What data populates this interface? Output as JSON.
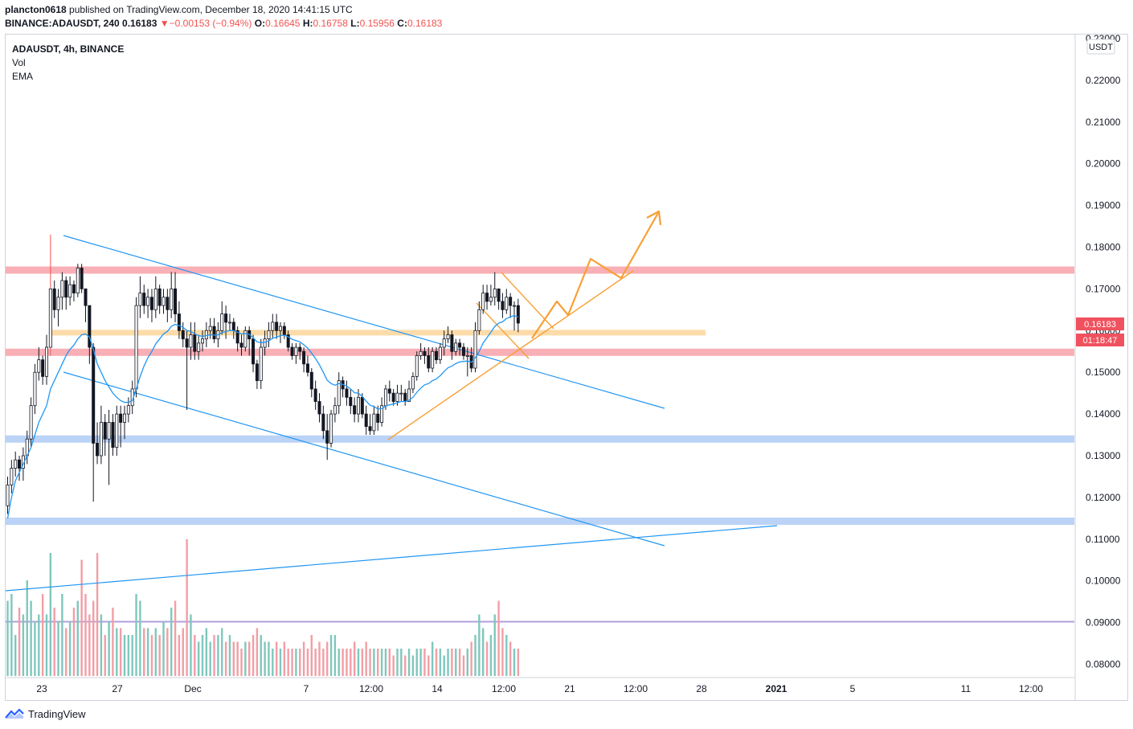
{
  "header": {
    "user": "plancton0618",
    "published_text": "published on TradingView.com, December 18, 2020 14:41:15 UTC",
    "symbol": "BINANCE:ADAUSDT, 240",
    "last": "0.16183",
    "change_arrow": "▼",
    "change": "−0.00153 (−0.94%)",
    "o_label": "O:",
    "o_value": "0.16645",
    "h_label": "H:",
    "h_value": "0.16758",
    "l_label": "L:",
    "l_value": "0.15956",
    "c_label": "C:",
    "c_value": "0.16183"
  },
  "legend": {
    "title": "ADAUSDT, 4h, BINANCE",
    "vol": "Vol",
    "ema": "EMA"
  },
  "price_axis": {
    "currency": "USDT",
    "current_price": "0.16183",
    "countdown": "01:18:47",
    "ticks": [
      "0.23000",
      "0.22000",
      "0.21000",
      "0.20000",
      "0.19000",
      "0.18000",
      "0.17000",
      "0.16000",
      "0.15000",
      "0.14000",
      "0.13000",
      "0.12000",
      "0.11000",
      "0.10000",
      "0.09000",
      "0.08000"
    ]
  },
  "time_axis": {
    "labels": [
      {
        "text": "23",
        "bold": false
      },
      {
        "text": "27",
        "bold": false
      },
      {
        "text": "Dec",
        "bold": false
      },
      {
        "text": "7",
        "bold": false
      },
      {
        "text": "12:00",
        "bold": false
      },
      {
        "text": "14",
        "bold": false
      },
      {
        "text": "12:00",
        "bold": false
      },
      {
        "text": "21",
        "bold": false
      },
      {
        "text": "12:00",
        "bold": false
      },
      {
        "text": "28",
        "bold": false
      },
      {
        "text": "2021",
        "bold": true
      },
      {
        "text": "5",
        "bold": false
      },
      {
        "text": "11",
        "bold": false
      },
      {
        "text": "12:00",
        "bold": false
      }
    ]
  },
  "footer": {
    "brand": "TradingView"
  },
  "colors": {
    "up": "#131722",
    "down": "#131722",
    "ema": "#2196f3",
    "trendline": "#2196f3",
    "resistance_zone": "#f7a1a8",
    "support_zone": "#aecbf5",
    "orange": "#f7a035",
    "orange_zone": "#fddcaa",
    "vol_up": "#7fc7bd",
    "vol_down": "#f29ea5",
    "price_label": "#f0515e"
  },
  "chart_data": {
    "type": "candlestick",
    "symbol": "ADAUSDT",
    "interval": "4h",
    "exchange": "BINANCE",
    "y_range": [
      0.076,
      0.233
    ],
    "ohlc": {
      "o": [
        0.118,
        0.123,
        0.127,
        0.129,
        0.127,
        0.13,
        0.134,
        0.142,
        0.15,
        0.153,
        0.149,
        0.156,
        0.17,
        0.165,
        0.168,
        0.172,
        0.168,
        0.171,
        0.169,
        0.175,
        0.17,
        0.166,
        0.156,
        0.133,
        0.13,
        0.138,
        0.134,
        0.138,
        0.132,
        0.14,
        0.138,
        0.14,
        0.142,
        0.146,
        0.166,
        0.169,
        0.166,
        0.168,
        0.165,
        0.17,
        0.166,
        0.168,
        0.165,
        0.17,
        0.164,
        0.16,
        0.158,
        0.156,
        0.159,
        0.155,
        0.157,
        0.158,
        0.16,
        0.161,
        0.158,
        0.16,
        0.164,
        0.162,
        0.162,
        0.16,
        0.157,
        0.156,
        0.16,
        0.158,
        0.152,
        0.148,
        0.156,
        0.158,
        0.16,
        0.162,
        0.16,
        0.161,
        0.159,
        0.156,
        0.154,
        0.156,
        0.155,
        0.152,
        0.15,
        0.146,
        0.143,
        0.14,
        0.136,
        0.133,
        0.14,
        0.142,
        0.148,
        0.146,
        0.144,
        0.142,
        0.14,
        0.144,
        0.14,
        0.137,
        0.136,
        0.14,
        0.138,
        0.142,
        0.146,
        0.145,
        0.143,
        0.145,
        0.145,
        0.143,
        0.146,
        0.149,
        0.154,
        0.155,
        0.154,
        0.151,
        0.155,
        0.153,
        0.156,
        0.158,
        0.159,
        0.155,
        0.157,
        0.156,
        0.154,
        0.154,
        0.151,
        0.16,
        0.165,
        0.169,
        0.167,
        0.168,
        0.17,
        0.167,
        0.165,
        0.168,
        0.166,
        0.166
      ],
      "c": [
        0.123,
        0.127,
        0.129,
        0.127,
        0.13,
        0.134,
        0.142,
        0.15,
        0.153,
        0.149,
        0.156,
        0.17,
        0.165,
        0.168,
        0.172,
        0.168,
        0.171,
        0.169,
        0.175,
        0.17,
        0.166,
        0.156,
        0.133,
        0.13,
        0.138,
        0.134,
        0.138,
        0.132,
        0.14,
        0.138,
        0.14,
        0.142,
        0.146,
        0.166,
        0.169,
        0.166,
        0.168,
        0.165,
        0.17,
        0.166,
        0.168,
        0.165,
        0.17,
        0.164,
        0.16,
        0.158,
        0.156,
        0.159,
        0.155,
        0.157,
        0.158,
        0.16,
        0.161,
        0.158,
        0.16,
        0.164,
        0.162,
        0.162,
        0.16,
        0.157,
        0.156,
        0.16,
        0.158,
        0.152,
        0.148,
        0.156,
        0.158,
        0.16,
        0.162,
        0.16,
        0.161,
        0.159,
        0.156,
        0.154,
        0.156,
        0.155,
        0.152,
        0.15,
        0.146,
        0.143,
        0.14,
        0.136,
        0.133,
        0.14,
        0.142,
        0.148,
        0.146,
        0.144,
        0.142,
        0.14,
        0.144,
        0.14,
        0.137,
        0.136,
        0.14,
        0.138,
        0.142,
        0.146,
        0.145,
        0.143,
        0.145,
        0.145,
        0.143,
        0.146,
        0.149,
        0.154,
        0.155,
        0.154,
        0.151,
        0.155,
        0.153,
        0.156,
        0.158,
        0.159,
        0.155,
        0.157,
        0.156,
        0.154,
        0.154,
        0.151,
        0.16,
        0.165,
        0.169,
        0.167,
        0.168,
        0.17,
        0.167,
        0.165,
        0.168,
        0.166,
        0.166,
        0.1618
      ],
      "h": [
        0.125,
        0.129,
        0.131,
        0.13,
        0.132,
        0.136,
        0.144,
        0.152,
        0.156,
        0.154,
        0.159,
        0.183,
        0.172,
        0.17,
        0.174,
        0.173,
        0.173,
        0.172,
        0.176,
        0.176,
        0.169,
        0.16,
        0.157,
        0.138,
        0.142,
        0.14,
        0.141,
        0.14,
        0.142,
        0.142,
        0.142,
        0.144,
        0.148,
        0.168,
        0.173,
        0.171,
        0.17,
        0.17,
        0.173,
        0.171,
        0.17,
        0.17,
        0.174,
        0.174,
        0.167,
        0.162,
        0.16,
        0.162,
        0.162,
        0.159,
        0.16,
        0.162,
        0.163,
        0.163,
        0.162,
        0.167,
        0.166,
        0.164,
        0.163,
        0.161,
        0.159,
        0.161,
        0.161,
        0.159,
        0.153,
        0.158,
        0.16,
        0.162,
        0.164,
        0.164,
        0.162,
        0.162,
        0.16,
        0.157,
        0.157,
        0.157,
        0.156,
        0.154,
        0.151,
        0.148,
        0.145,
        0.142,
        0.14,
        0.141,
        0.144,
        0.15,
        0.149,
        0.148,
        0.146,
        0.144,
        0.146,
        0.145,
        0.142,
        0.14,
        0.142,
        0.142,
        0.144,
        0.147,
        0.148,
        0.146,
        0.147,
        0.147,
        0.146,
        0.148,
        0.15,
        0.155,
        0.157,
        0.156,
        0.156,
        0.156,
        0.156,
        0.157,
        0.16,
        0.161,
        0.16,
        0.158,
        0.158,
        0.157,
        0.156,
        0.156,
        0.162,
        0.167,
        0.171,
        0.171,
        0.171,
        0.174,
        0.17,
        0.169,
        0.17,
        0.169,
        0.167,
        0.1676
      ],
      "l": [
        0.116,
        0.121,
        0.125,
        0.124,
        0.124,
        0.128,
        0.132,
        0.14,
        0.148,
        0.147,
        0.147,
        0.154,
        0.163,
        0.161,
        0.165,
        0.165,
        0.166,
        0.167,
        0.168,
        0.169,
        0.162,
        0.152,
        0.119,
        0.128,
        0.128,
        0.13,
        0.123,
        0.13,
        0.13,
        0.132,
        0.134,
        0.138,
        0.14,
        0.144,
        0.163,
        0.164,
        0.163,
        0.162,
        0.163,
        0.164,
        0.164,
        0.162,
        0.163,
        0.162,
        0.158,
        0.156,
        0.141,
        0.153,
        0.153,
        0.153,
        0.155,
        0.156,
        0.158,
        0.157,
        0.156,
        0.159,
        0.158,
        0.16,
        0.158,
        0.155,
        0.154,
        0.155,
        0.154,
        0.15,
        0.146,
        0.146,
        0.154,
        0.156,
        0.158,
        0.158,
        0.157,
        0.158,
        0.155,
        0.153,
        0.152,
        0.153,
        0.15,
        0.149,
        0.144,
        0.141,
        0.138,
        0.134,
        0.129,
        0.132,
        0.138,
        0.14,
        0.144,
        0.142,
        0.14,
        0.138,
        0.138,
        0.139,
        0.135,
        0.135,
        0.135,
        0.136,
        0.137,
        0.141,
        0.143,
        0.142,
        0.142,
        0.143,
        0.142,
        0.143,
        0.145,
        0.148,
        0.153,
        0.152,
        0.15,
        0.15,
        0.152,
        0.152,
        0.154,
        0.157,
        0.153,
        0.154,
        0.154,
        0.153,
        0.149,
        0.15,
        0.15,
        0.159,
        0.164,
        0.165,
        0.166,
        0.166,
        0.165,
        0.163,
        0.164,
        0.163,
        0.16,
        0.1596
      ]
    },
    "ema": [
      0.115,
      0.12,
      0.124,
      0.126,
      0.128,
      0.13,
      0.132,
      0.135,
      0.138,
      0.14,
      0.142,
      0.146,
      0.148,
      0.15,
      0.152,
      0.154,
      0.1555,
      0.1565,
      0.158,
      0.159,
      0.1592,
      0.1585,
      0.1555,
      0.152,
      0.15,
      0.148,
      0.1465,
      0.145,
      0.144,
      0.1432,
      0.1428,
      0.1428,
      0.1432,
      0.146,
      0.149,
      0.1515,
      0.1535,
      0.155,
      0.1568,
      0.158,
      0.1592,
      0.1598,
      0.161,
      0.1615,
      0.1612,
      0.1608,
      0.16,
      0.1598,
      0.1592,
      0.1588,
      0.1586,
      0.1588,
      0.159,
      0.1589,
      0.159,
      0.1595,
      0.1598,
      0.16,
      0.16,
      0.1596,
      0.1592,
      0.1593,
      0.1591,
      0.1583,
      0.1573,
      0.1571,
      0.1572,
      0.1575,
      0.1582,
      0.1584,
      0.1588,
      0.1589,
      0.1585,
      0.1579,
      0.1576,
      0.1573,
      0.1566,
      0.1558,
      0.1546,
      0.1533,
      0.1518,
      0.15,
      0.1481,
      0.1473,
      0.1469,
      0.1473,
      0.1471,
      0.1467,
      0.146,
      0.1451,
      0.145,
      0.1442,
      0.1431,
      0.1421,
      0.1418,
      0.1412,
      0.1413,
      0.1419,
      0.1422,
      0.1424,
      0.1427,
      0.143,
      0.143,
      0.1433,
      0.144,
      0.1452,
      0.1462,
      0.147,
      0.1473,
      0.148,
      0.1484,
      0.1492,
      0.1502,
      0.1511,
      0.1515,
      0.1521,
      0.1525,
      0.1526,
      0.1527,
      0.1524,
      0.1535,
      0.155,
      0.157,
      0.1583,
      0.1596,
      0.161,
      0.1618,
      0.1621,
      0.1629,
      0.1633,
      0.1636,
      0.1632
    ],
    "volume_rel": [
      0.55,
      0.6,
      0.3,
      0.5,
      0.45,
      0.7,
      0.55,
      0.4,
      0.45,
      0.6,
      0.45,
      0.9,
      0.5,
      0.4,
      0.6,
      0.35,
      0.4,
      0.5,
      0.55,
      0.85,
      0.6,
      0.45,
      0.55,
      0.9,
      0.45,
      0.3,
      0.4,
      0.5,
      0.35,
      0.35,
      0.3,
      0.3,
      0.3,
      0.6,
      0.55,
      0.35,
      0.35,
      0.3,
      0.35,
      0.3,
      0.4,
      0.35,
      0.5,
      0.55,
      0.3,
      0.35,
      1.0,
      0.45,
      0.3,
      0.25,
      0.3,
      0.35,
      0.25,
      0.3,
      0.3,
      0.35,
      0.25,
      0.3,
      0.25,
      0.25,
      0.2,
      0.25,
      0.25,
      0.3,
      0.35,
      0.3,
      0.25,
      0.25,
      0.2,
      0.25,
      0.2,
      0.25,
      0.2,
      0.2,
      0.2,
      0.2,
      0.25,
      0.2,
      0.3,
      0.2,
      0.25,
      0.2,
      0.25,
      0.3,
      0.3,
      0.2,
      0.2,
      0.2,
      0.2,
      0.25,
      0.2,
      0.2,
      0.25,
      0.2,
      0.2,
      0.2,
      0.2,
      0.2,
      0.2,
      0.15,
      0.2,
      0.2,
      0.15,
      0.2,
      0.15,
      0.2,
      0.2,
      0.2,
      0.15,
      0.25,
      0.2,
      0.2,
      0.15,
      0.2,
      0.2,
      0.2,
      0.2,
      0.15,
      0.2,
      0.25,
      0.3,
      0.45,
      0.35,
      0.25,
      0.3,
      0.45,
      0.55,
      0.35,
      0.3,
      0.25,
      0.2,
      0.2
    ],
    "zones": [
      {
        "name": "resistance",
        "price": 0.1745,
        "color": "#f7a1a8"
      },
      {
        "name": "support-upper",
        "price": 0.1548,
        "color": "#f7a1a8"
      },
      {
        "name": "orange-level",
        "price": 0.1595,
        "color": "#fddcaa"
      },
      {
        "name": "support-blue-1",
        "price": 0.134,
        "color": "#aecbf5"
      },
      {
        "name": "support-blue-2",
        "price": 0.1143,
        "color": "#aecbf5"
      }
    ],
    "horizontal_line": {
      "price": 0.0902,
      "color": "#b39ddb"
    }
  }
}
